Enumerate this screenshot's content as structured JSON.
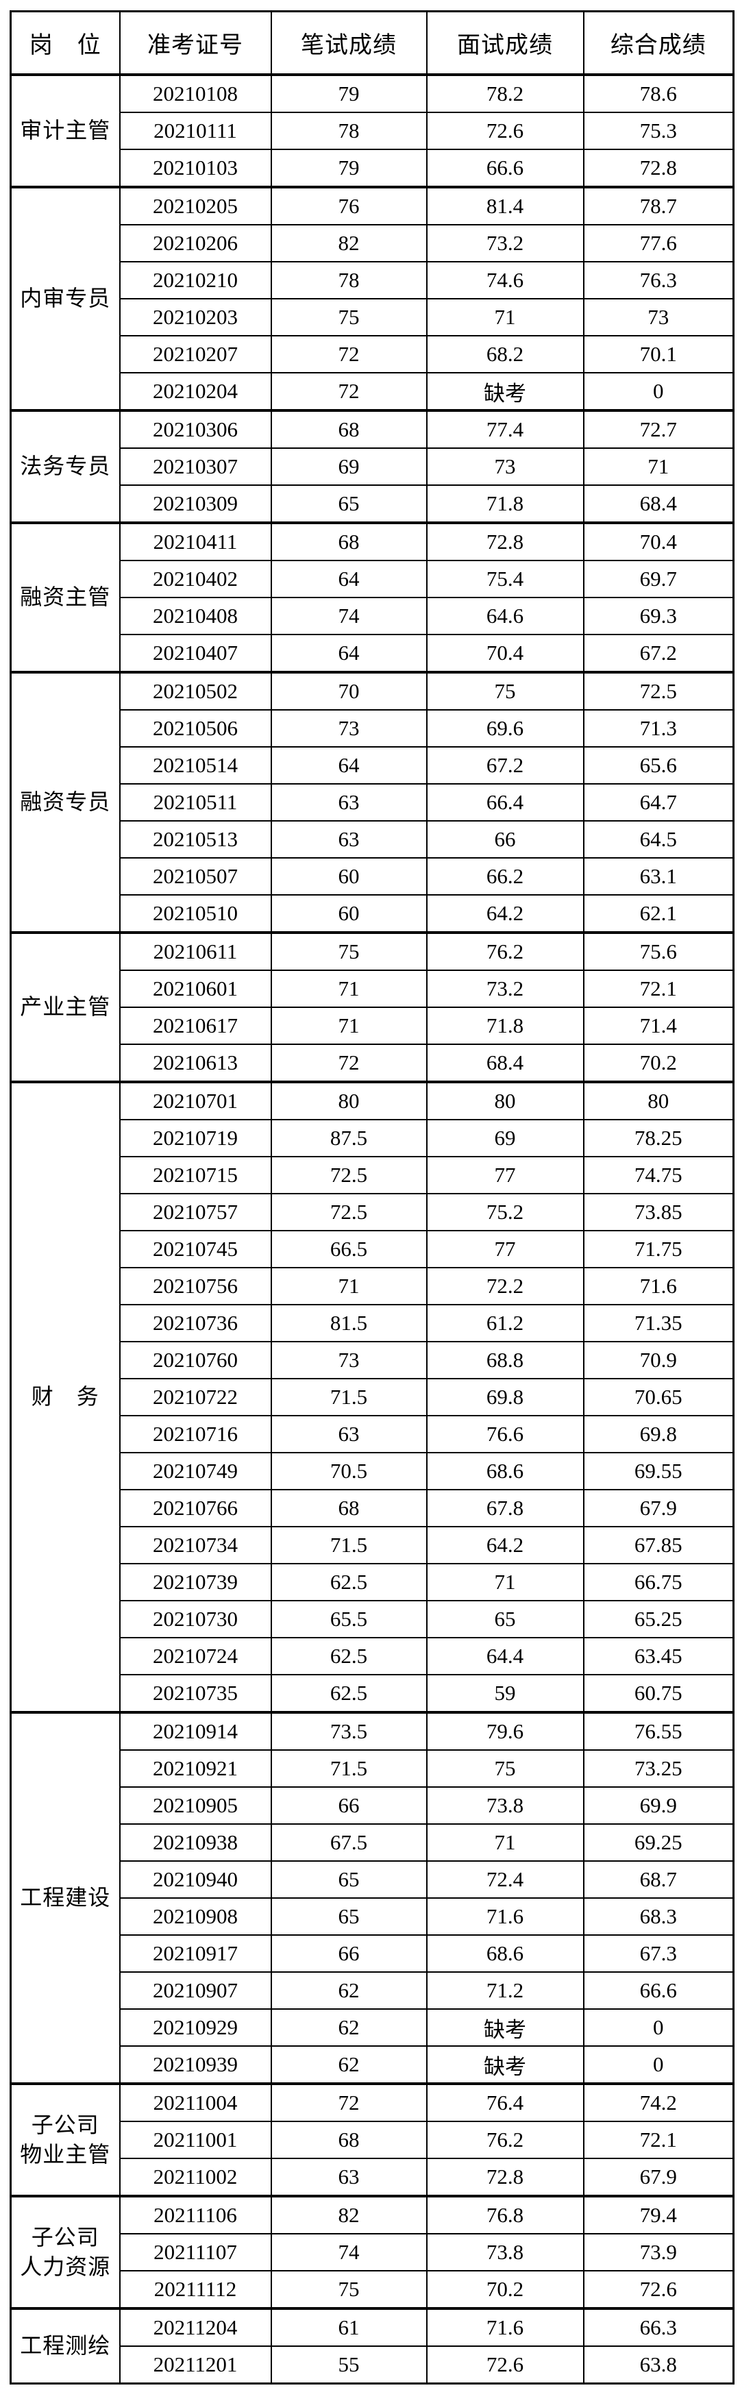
{
  "table": {
    "headers": [
      {
        "id": "position",
        "label": "岗　位"
      },
      {
        "id": "exam_id",
        "label": "准考证号"
      },
      {
        "id": "written",
        "label": "笔试成绩"
      },
      {
        "id": "interview",
        "label": "面试成绩"
      },
      {
        "id": "composite",
        "label": "综合成绩"
      }
    ],
    "absent_label": "缺考",
    "groups": [
      {
        "position_lines": [
          "审计主管"
        ],
        "rows": [
          [
            "20210108",
            "79",
            "78.2",
            "78.6"
          ],
          [
            "20210111",
            "78",
            "72.6",
            "75.3"
          ],
          [
            "20210103",
            "79",
            "66.6",
            "72.8"
          ]
        ]
      },
      {
        "position_lines": [
          "内审专员"
        ],
        "rows": [
          [
            "20210205",
            "76",
            "81.4",
            "78.7"
          ],
          [
            "20210206",
            "82",
            "73.2",
            "77.6"
          ],
          [
            "20210210",
            "78",
            "74.6",
            "76.3"
          ],
          [
            "20210203",
            "75",
            "71",
            "73"
          ],
          [
            "20210207",
            "72",
            "68.2",
            "70.1"
          ],
          [
            "20210204",
            "72",
            "缺考",
            "0"
          ]
        ]
      },
      {
        "position_lines": [
          "法务专员"
        ],
        "rows": [
          [
            "20210306",
            "68",
            "77.4",
            "72.7"
          ],
          [
            "20210307",
            "69",
            "73",
            "71"
          ],
          [
            "20210309",
            "65",
            "71.8",
            "68.4"
          ]
        ]
      },
      {
        "position_lines": [
          "融资主管"
        ],
        "rows": [
          [
            "20210411",
            "68",
            "72.8",
            "70.4"
          ],
          [
            "20210402",
            "64",
            "75.4",
            "69.7"
          ],
          [
            "20210408",
            "74",
            "64.6",
            "69.3"
          ],
          [
            "20210407",
            "64",
            "70.4",
            "67.2"
          ]
        ]
      },
      {
        "position_lines": [
          "融资专员"
        ],
        "rows": [
          [
            "20210502",
            "70",
            "75",
            "72.5"
          ],
          [
            "20210506",
            "73",
            "69.6",
            "71.3"
          ],
          [
            "20210514",
            "64",
            "67.2",
            "65.6"
          ],
          [
            "20210511",
            "63",
            "66.4",
            "64.7"
          ],
          [
            "20210513",
            "63",
            "66",
            "64.5"
          ],
          [
            "20210507",
            "60",
            "66.2",
            "63.1"
          ],
          [
            "20210510",
            "60",
            "64.2",
            "62.1"
          ]
        ]
      },
      {
        "position_lines": [
          "产业主管"
        ],
        "rows": [
          [
            "20210611",
            "75",
            "76.2",
            "75.6"
          ],
          [
            "20210601",
            "71",
            "73.2",
            "72.1"
          ],
          [
            "20210617",
            "71",
            "71.8",
            "71.4"
          ],
          [
            "20210613",
            "72",
            "68.4",
            "70.2"
          ]
        ]
      },
      {
        "position_lines": [
          "财　务"
        ],
        "rows": [
          [
            "20210701",
            "80",
            "80",
            "80"
          ],
          [
            "20210719",
            "87.5",
            "69",
            "78.25"
          ],
          [
            "20210715",
            "72.5",
            "77",
            "74.75"
          ],
          [
            "20210757",
            "72.5",
            "75.2",
            "73.85"
          ],
          [
            "20210745",
            "66.5",
            "77",
            "71.75"
          ],
          [
            "20210756",
            "71",
            "72.2",
            "71.6"
          ],
          [
            "20210736",
            "81.5",
            "61.2",
            "71.35"
          ],
          [
            "20210760",
            "73",
            "68.8",
            "70.9"
          ],
          [
            "20210722",
            "71.5",
            "69.8",
            "70.65"
          ],
          [
            "20210716",
            "63",
            "76.6",
            "69.8"
          ],
          [
            "20210749",
            "70.5",
            "68.6",
            "69.55"
          ],
          [
            "20210766",
            "68",
            "67.8",
            "67.9"
          ],
          [
            "20210734",
            "71.5",
            "64.2",
            "67.85"
          ],
          [
            "20210739",
            "62.5",
            "71",
            "66.75"
          ],
          [
            "20210730",
            "65.5",
            "65",
            "65.25"
          ],
          [
            "20210724",
            "62.5",
            "64.4",
            "63.45"
          ],
          [
            "20210735",
            "62.5",
            "59",
            "60.75"
          ]
        ]
      },
      {
        "position_lines": [
          "工程建设"
        ],
        "rows": [
          [
            "20210914",
            "73.5",
            "79.6",
            "76.55"
          ],
          [
            "20210921",
            "71.5",
            "75",
            "73.25"
          ],
          [
            "20210905",
            "66",
            "73.8",
            "69.9"
          ],
          [
            "20210938",
            "67.5",
            "71",
            "69.25"
          ],
          [
            "20210940",
            "65",
            "72.4",
            "68.7"
          ],
          [
            "20210908",
            "65",
            "71.6",
            "68.3"
          ],
          [
            "20210917",
            "66",
            "68.6",
            "67.3"
          ],
          [
            "20210907",
            "62",
            "71.2",
            "66.6"
          ],
          [
            "20210929",
            "62",
            "缺考",
            "0"
          ],
          [
            "20210939",
            "62",
            "缺考",
            "0"
          ]
        ]
      },
      {
        "position_lines": [
          "子公司",
          "物业主管"
        ],
        "rows": [
          [
            "20211004",
            "72",
            "76.4",
            "74.2"
          ],
          [
            "20211001",
            "68",
            "76.2",
            "72.1"
          ],
          [
            "20211002",
            "63",
            "72.8",
            "67.9"
          ]
        ]
      },
      {
        "position_lines": [
          "子公司",
          "人力资源"
        ],
        "rows": [
          [
            "20211106",
            "82",
            "76.8",
            "79.4"
          ],
          [
            "20211107",
            "74",
            "73.8",
            "73.9"
          ],
          [
            "20211112",
            "75",
            "70.2",
            "72.6"
          ]
        ]
      },
      {
        "position_lines": [
          "工程测绘"
        ],
        "rows": [
          [
            "20211204",
            "61",
            "71.6",
            "66.3"
          ],
          [
            "20211201",
            "55",
            "72.6",
            "63.8"
          ]
        ]
      }
    ]
  }
}
